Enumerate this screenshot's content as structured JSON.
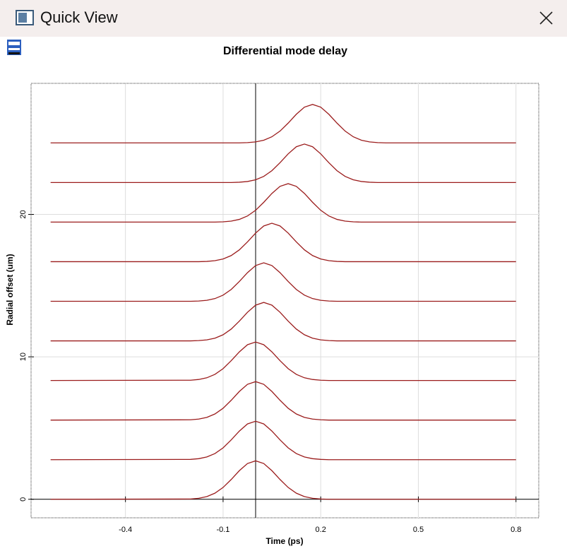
{
  "window": {
    "title": "Quick View"
  },
  "chart_data": {
    "type": "line",
    "title": "Differential mode delay",
    "x_label": "Time (ps)",
    "y_label": "Radial offset (um)",
    "xlim": [
      -0.69,
      0.87
    ],
    "ylim": [
      -1.3,
      29.2
    ],
    "xticks": [
      -0.4,
      -0.1,
      0.2,
      0.5,
      0.8
    ],
    "yticks": [
      0,
      10,
      20
    ],
    "grid": true,
    "x": [
      -0.63,
      -0.2,
      -0.175,
      -0.15,
      -0.125,
      -0.1,
      -0.075,
      -0.05,
      -0.025,
      0,
      0.025,
      0.05,
      0.075,
      0.1,
      0.125,
      0.15,
      0.175,
      0.2,
      0.225,
      0.25,
      0.275,
      0.3,
      0.325,
      0.35,
      0.375,
      0.4,
      0.8
    ],
    "series": [
      {
        "color": "#9b1c1c",
        "values": [
          0,
          0.02,
          0.07,
          0.19,
          0.43,
          0.83,
          1.39,
          2.01,
          2.51,
          2.7,
          2.51,
          2.01,
          1.39,
          0.83,
          0.43,
          0.19,
          0.07,
          0.02,
          0,
          0,
          0,
          0,
          0,
          0,
          0,
          0,
          0
        ]
      },
      {
        "color": "#9b1c1c",
        "values": [
          2.78,
          2.8,
          2.85,
          2.97,
          3.21,
          3.61,
          4.17,
          4.79,
          5.29,
          5.48,
          5.29,
          4.79,
          4.17,
          3.61,
          3.21,
          2.97,
          2.85,
          2.8,
          2.78,
          2.78,
          2.78,
          2.78,
          2.78,
          2.78,
          2.78,
          2.78,
          2.78
        ]
      },
      {
        "color": "#9b1c1c",
        "values": [
          5.56,
          5.58,
          5.63,
          5.75,
          5.99,
          6.39,
          6.95,
          7.57,
          8.07,
          8.26,
          8.07,
          7.57,
          6.95,
          6.39,
          5.99,
          5.75,
          5.63,
          5.58,
          5.56,
          5.56,
          5.56,
          5.56,
          5.56,
          5.56,
          5.56,
          5.56,
          5.56
        ]
      },
      {
        "color": "#9b1c1c",
        "values": [
          8.34,
          8.36,
          8.41,
          8.53,
          8.77,
          9.17,
          9.73,
          10.35,
          10.85,
          11.04,
          10.85,
          10.35,
          9.73,
          9.17,
          8.77,
          8.53,
          8.41,
          8.36,
          8.34,
          8.34,
          8.34,
          8.34,
          8.34,
          8.34,
          8.34,
          8.34,
          8.34
        ]
      },
      {
        "color": "#9b1c1c",
        "values": [
          11.12,
          11.12,
          11.14,
          11.19,
          11.31,
          11.55,
          11.95,
          12.51,
          13.13,
          13.63,
          13.82,
          13.63,
          13.13,
          12.51,
          11.95,
          11.55,
          11.31,
          11.19,
          11.14,
          11.12,
          11.12,
          11.12,
          11.12,
          11.12,
          11.12,
          11.12,
          11.12
        ]
      },
      {
        "color": "#9b1c1c",
        "values": [
          13.9,
          13.9,
          13.92,
          13.97,
          14.09,
          14.33,
          14.73,
          15.29,
          15.91,
          16.41,
          16.6,
          16.41,
          15.91,
          15.29,
          14.73,
          14.33,
          14.09,
          13.97,
          13.92,
          13.9,
          13.9,
          13.9,
          13.9,
          13.9,
          13.9,
          13.9,
          13.9
        ]
      },
      {
        "color": "#9b1c1c",
        "values": [
          16.68,
          16.68,
          16.68,
          16.7,
          16.75,
          16.87,
          17.11,
          17.51,
          18.07,
          18.69,
          19.19,
          19.38,
          19.19,
          18.69,
          18.07,
          17.51,
          17.11,
          16.87,
          16.75,
          16.7,
          16.68,
          16.68,
          16.68,
          16.68,
          16.68,
          16.68,
          16.68
        ]
      },
      {
        "color": "#9b1c1c",
        "values": [
          19.46,
          19.46,
          19.46,
          19.46,
          19.46,
          19.48,
          19.53,
          19.65,
          19.89,
          20.29,
          20.85,
          21.47,
          21.97,
          22.16,
          21.97,
          21.47,
          20.85,
          20.29,
          19.89,
          19.65,
          19.53,
          19.48,
          19.46,
          19.46,
          19.46,
          19.46,
          19.46
        ]
      },
      {
        "color": "#9b1c1c",
        "values": [
          22.24,
          22.24,
          22.24,
          22.24,
          22.24,
          22.24,
          22.24,
          22.26,
          22.31,
          22.43,
          22.67,
          23.07,
          23.63,
          24.25,
          24.75,
          24.94,
          24.75,
          24.25,
          23.63,
          23.07,
          22.67,
          22.43,
          22.31,
          22.26,
          22.24,
          22.24,
          22.24
        ]
      },
      {
        "color": "#9b1c1c",
        "values": [
          25.02,
          25.02,
          25.02,
          25.02,
          25.02,
          25.02,
          25.02,
          25.02,
          25.04,
          25.09,
          25.21,
          25.45,
          25.85,
          26.41,
          27.03,
          27.53,
          27.72,
          27.53,
          27.03,
          26.41,
          25.85,
          25.45,
          25.21,
          25.09,
          25.04,
          25.02,
          25.02
        ]
      }
    ]
  }
}
